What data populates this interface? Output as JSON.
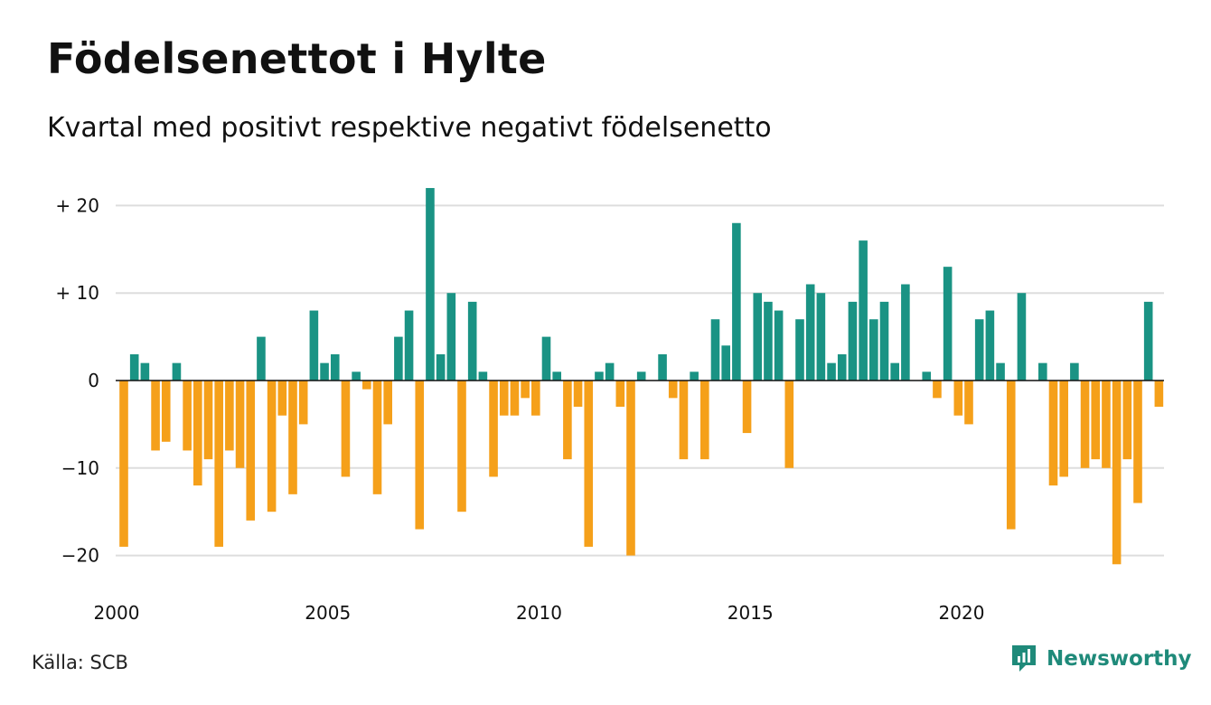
{
  "title": "Födelsenettot i Hylte",
  "subtitle": "Kvartal med positivt respektive negativt födelsenetto",
  "source": "Källa: SCB",
  "brand": {
    "name": "Newsworthy",
    "icon": "newsworthy-logo-icon",
    "color": "#1f8a7a"
  },
  "colors": {
    "positive": "#1a9384",
    "negative": "#f5a01a",
    "grid": "#dddddd",
    "zero": "#111111"
  },
  "chart_data": {
    "type": "bar",
    "title": "Födelsenettot i Hylte",
    "subtitle": "Kvartal med positivt respektive negativt födelsenetto",
    "x_start": "2000 Q1",
    "x_ticks": [
      2000,
      2005,
      2010,
      2015,
      2020
    ],
    "x_tick_labels": [
      "2000",
      "2005",
      "2010",
      "2015",
      "2020"
    ],
    "y_ticks": [
      20,
      10,
      0,
      -10,
      -20
    ],
    "y_tick_labels": [
      "+ 20",
      "+ 10",
      "0",
      "−10",
      "−20"
    ],
    "ylim": [
      -22,
      22
    ],
    "grid": true,
    "values": [
      -19,
      3,
      2,
      -8,
      -7,
      2,
      -8,
      -12,
      -9,
      -19,
      -8,
      -10,
      -16,
      5,
      -15,
      -4,
      -13,
      -5,
      8,
      2,
      3,
      -11,
      1,
      -1,
      -13,
      -5,
      5,
      8,
      -17,
      22,
      3,
      10,
      -15,
      9,
      1,
      -11,
      -4,
      -4,
      -2,
      -4,
      5,
      1,
      -9,
      -3,
      -19,
      1,
      2,
      -3,
      -20,
      1,
      0,
      3,
      -2,
      -9,
      1,
      -9,
      7,
      4,
      18,
      -6,
      10,
      9,
      8,
      -10,
      7,
      11,
      10,
      2,
      3,
      9,
      16,
      7,
      9,
      2,
      11,
      0,
      1,
      -2,
      13,
      -4,
      -5,
      7,
      8,
      2,
      -17,
      10,
      0,
      2,
      -12,
      -11,
      2,
      -10,
      -9,
      -10,
      -21,
      -9,
      -14,
      9,
      -3
    ]
  }
}
